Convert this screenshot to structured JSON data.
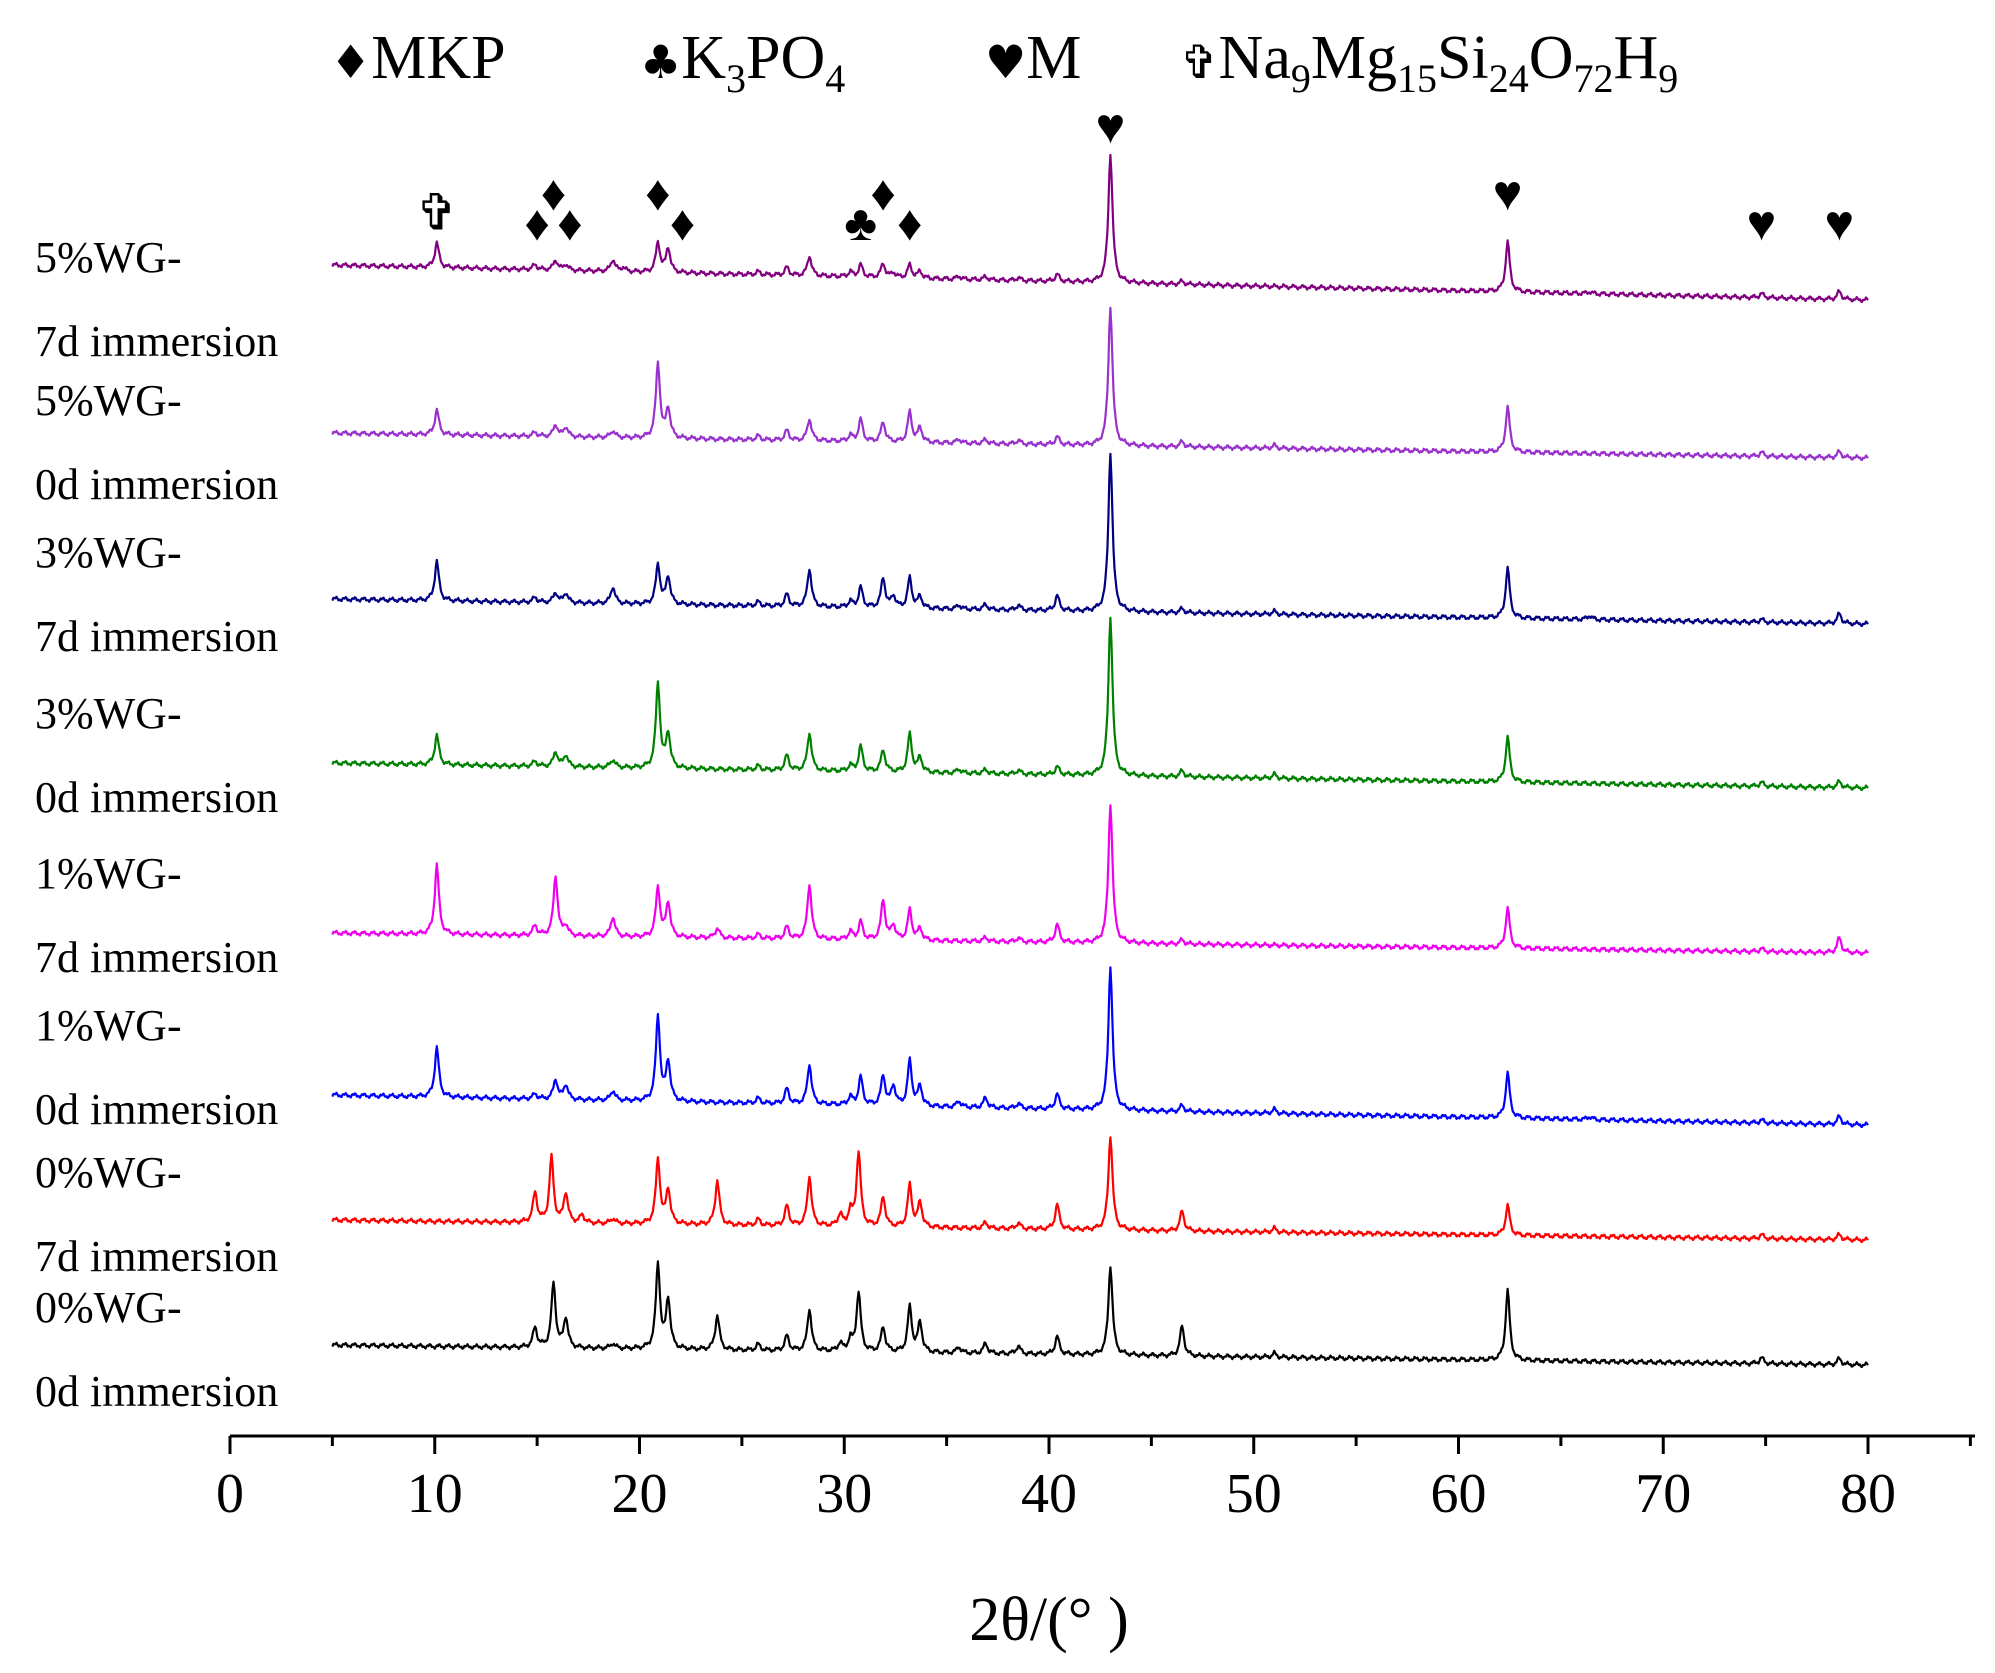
{
  "chart_data": {
    "type": "line",
    "title": "",
    "xlabel": "2θ/(° )",
    "ylabel": "",
    "xlim": [
      0,
      85
    ],
    "xticks": [
      0,
      10,
      20,
      30,
      40,
      50,
      60,
      70,
      80
    ],
    "grid": false,
    "legend": {
      "placement": "top",
      "entries": [
        {
          "symbol": "♦",
          "parts": [
            [
              "MKP",
              "n"
            ]
          ]
        },
        {
          "symbol": "♣",
          "parts": [
            [
              "K",
              "n"
            ],
            [
              "3",
              "s"
            ],
            [
              "PO",
              "n"
            ],
            [
              "4",
              "s"
            ]
          ]
        },
        {
          "symbol": "♥",
          "parts": [
            [
              "M",
              "n"
            ]
          ]
        },
        {
          "symbol": "✞",
          "parts": [
            [
              "Na",
              "n"
            ],
            [
              "9",
              "s"
            ],
            [
              "Mg",
              "n"
            ],
            [
              "15",
              "s"
            ],
            [
              "Si",
              "n"
            ],
            [
              "24",
              "s"
            ],
            [
              "O",
              "n"
            ],
            [
              "72",
              "s"
            ],
            [
              "H",
              "n"
            ],
            [
              "9",
              "s"
            ]
          ]
        }
      ]
    },
    "phase_markers": [
      {
        "symbol": "✞",
        "x": 10.1,
        "level": 1
      },
      {
        "symbol": "♦",
        "x": 15.0,
        "level": 1
      },
      {
        "symbol": "♦",
        "x": 15.8,
        "level": 2
      },
      {
        "symbol": "♦",
        "x": 16.6,
        "level": 1
      },
      {
        "symbol": "♦",
        "x": 20.9,
        "level": 2
      },
      {
        "symbol": "♦",
        "x": 22.1,
        "level": 1
      },
      {
        "symbol": "♣",
        "x": 30.8,
        "level": 1
      },
      {
        "symbol": "♦",
        "x": 31.9,
        "level": 2
      },
      {
        "symbol": "♦",
        "x": 33.2,
        "level": 1
      },
      {
        "symbol": "♥",
        "x": 43.0,
        "level": 3
      },
      {
        "symbol": "♥",
        "x": 62.4,
        "level": 2
      },
      {
        "symbol": "♥",
        "x": 74.8,
        "level": 1
      },
      {
        "symbol": "♥",
        "x": 78.6,
        "level": 1
      }
    ],
    "series": [
      {
        "name": "5%WG- 7d immersion",
        "label_lines": [
          "5%WG-",
          "7d immersion"
        ],
        "color": "#800080",
        "baseline_start": 0.35,
        "baseline_end": 0.0,
        "peaks": [
          [
            10.1,
            0.25
          ],
          [
            14.9,
            0.05
          ],
          [
            15.9,
            0.1
          ],
          [
            16.4,
            0.06
          ],
          [
            18.7,
            0.12
          ],
          [
            19.2,
            0.04
          ],
          [
            20.9,
            0.3
          ],
          [
            21.4,
            0.25
          ],
          [
            25.8,
            0.03
          ],
          [
            27.2,
            0.08
          ],
          [
            28.3,
            0.2
          ],
          [
            30.3,
            0.05
          ],
          [
            30.8,
            0.12
          ],
          [
            31.9,
            0.14
          ],
          [
            32.4,
            0.05
          ],
          [
            33.2,
            0.13
          ],
          [
            33.7,
            0.07
          ],
          [
            35.6,
            0.03
          ],
          [
            36.9,
            0.03
          ],
          [
            38.5,
            0.03
          ],
          [
            40.4,
            0.07
          ],
          [
            43.0,
            1.3
          ],
          [
            46.5,
            0.03
          ],
          [
            62.4,
            0.5
          ],
          [
            66.4,
            0.02
          ],
          [
            74.8,
            0.04
          ],
          [
            78.6,
            0.08
          ]
        ]
      },
      {
        "name": "5%WG- 0d immersion",
        "label_lines": [
          "5%WG-",
          "0d immersion"
        ],
        "color": "#9932CC",
        "baseline_start": 0.25,
        "baseline_end": 0.0,
        "peaks": [
          [
            10.1,
            0.25
          ],
          [
            14.9,
            0.04
          ],
          [
            15.9,
            0.12
          ],
          [
            16.4,
            0.1
          ],
          [
            18.7,
            0.07
          ],
          [
            20.9,
            0.75
          ],
          [
            21.4,
            0.3
          ],
          [
            25.8,
            0.04
          ],
          [
            27.2,
            0.1
          ],
          [
            28.3,
            0.22
          ],
          [
            30.3,
            0.06
          ],
          [
            30.8,
            0.22
          ],
          [
            31.9,
            0.2
          ],
          [
            33.2,
            0.3
          ],
          [
            33.7,
            0.15
          ],
          [
            35.6,
            0.04
          ],
          [
            36.9,
            0.04
          ],
          [
            38.5,
            0.04
          ],
          [
            40.4,
            0.08
          ],
          [
            43.0,
            1.4
          ],
          [
            46.5,
            0.05
          ],
          [
            51.0,
            0.03
          ],
          [
            62.4,
            0.45
          ],
          [
            74.8,
            0.04
          ],
          [
            78.6,
            0.06
          ]
        ]
      },
      {
        "name": "3%WG- 7d immersion",
        "label_lines": [
          "3%WG-",
          "7d immersion"
        ],
        "color": "#000080",
        "baseline_start": 0.25,
        "baseline_end": 0.0,
        "peaks": [
          [
            10.1,
            0.4
          ],
          [
            14.9,
            0.05
          ],
          [
            15.9,
            0.1
          ],
          [
            16.4,
            0.1
          ],
          [
            18.7,
            0.17
          ],
          [
            20.9,
            0.4
          ],
          [
            21.4,
            0.28
          ],
          [
            25.8,
            0.04
          ],
          [
            27.2,
            0.12
          ],
          [
            28.3,
            0.38
          ],
          [
            30.3,
            0.06
          ],
          [
            30.8,
            0.2
          ],
          [
            31.9,
            0.3
          ],
          [
            32.4,
            0.12
          ],
          [
            33.2,
            0.3
          ],
          [
            33.7,
            0.12
          ],
          [
            35.6,
            0.04
          ],
          [
            36.9,
            0.05
          ],
          [
            38.5,
            0.05
          ],
          [
            40.4,
            0.15
          ],
          [
            43.0,
            1.6
          ],
          [
            46.5,
            0.04
          ],
          [
            51.0,
            0.03
          ],
          [
            62.4,
            0.5
          ],
          [
            66.4,
            0.04
          ],
          [
            74.8,
            0.03
          ],
          [
            78.6,
            0.1
          ]
        ]
      },
      {
        "name": "3%WG- 0d immersion",
        "label_lines": [
          "3%WG-",
          "0d immersion"
        ],
        "color": "#008000",
        "baseline_start": 0.25,
        "baseline_end": 0.0,
        "peaks": [
          [
            10.1,
            0.3
          ],
          [
            14.9,
            0.05
          ],
          [
            15.9,
            0.15
          ],
          [
            16.4,
            0.12
          ],
          [
            18.7,
            0.08
          ],
          [
            20.9,
            0.85
          ],
          [
            21.4,
            0.35
          ],
          [
            25.8,
            0.04
          ],
          [
            27.2,
            0.15
          ],
          [
            28.3,
            0.38
          ],
          [
            30.3,
            0.06
          ],
          [
            30.8,
            0.25
          ],
          [
            31.9,
            0.22
          ],
          [
            33.2,
            0.38
          ],
          [
            33.7,
            0.15
          ],
          [
            35.6,
            0.04
          ],
          [
            36.9,
            0.04
          ],
          [
            38.5,
            0.04
          ],
          [
            40.4,
            0.08
          ],
          [
            43.0,
            1.6
          ],
          [
            46.5,
            0.06
          ],
          [
            51.0,
            0.04
          ],
          [
            62.4,
            0.45
          ],
          [
            74.8,
            0.04
          ],
          [
            78.6,
            0.06
          ]
        ]
      },
      {
        "name": "1%WG- 7d immersion",
        "label_lines": [
          "1%WG-",
          "7d immersion"
        ],
        "color": "#EE00EE",
        "baseline_start": 0.2,
        "baseline_end": 0.0,
        "peaks": [
          [
            10.1,
            0.7
          ],
          [
            14.9,
            0.1
          ],
          [
            15.9,
            0.6
          ],
          [
            16.4,
            0.1
          ],
          [
            18.7,
            0.2
          ],
          [
            20.9,
            0.5
          ],
          [
            21.4,
            0.35
          ],
          [
            23.8,
            0.1
          ],
          [
            25.8,
            0.04
          ],
          [
            27.2,
            0.12
          ],
          [
            28.3,
            0.55
          ],
          [
            30.3,
            0.08
          ],
          [
            30.8,
            0.18
          ],
          [
            31.9,
            0.4
          ],
          [
            32.4,
            0.15
          ],
          [
            33.2,
            0.3
          ],
          [
            33.7,
            0.12
          ],
          [
            36.9,
            0.04
          ],
          [
            38.5,
            0.04
          ],
          [
            40.4,
            0.18
          ],
          [
            43.0,
            1.4
          ],
          [
            46.5,
            0.04
          ],
          [
            62.4,
            0.4
          ],
          [
            74.8,
            0.03
          ],
          [
            78.6,
            0.15
          ]
        ]
      },
      {
        "name": "1%WG- 0d immersion",
        "label_lines": [
          "1%WG-",
          "0d immersion"
        ],
        "color": "#0000FF",
        "baseline_start": 0.3,
        "baseline_end": 0.0,
        "peaks": [
          [
            10.1,
            0.5
          ],
          [
            14.9,
            0.05
          ],
          [
            15.9,
            0.2
          ],
          [
            16.4,
            0.15
          ],
          [
            18.7,
            0.1
          ],
          [
            20.9,
            0.85
          ],
          [
            21.4,
            0.4
          ],
          [
            25.8,
            0.05
          ],
          [
            27.2,
            0.15
          ],
          [
            28.3,
            0.4
          ],
          [
            30.3,
            0.08
          ],
          [
            30.8,
            0.28
          ],
          [
            31.9,
            0.3
          ],
          [
            32.4,
            0.2
          ],
          [
            33.2,
            0.45
          ],
          [
            33.7,
            0.2
          ],
          [
            35.6,
            0.06
          ],
          [
            36.9,
            0.1
          ],
          [
            38.5,
            0.05
          ],
          [
            40.4,
            0.15
          ],
          [
            43.0,
            1.45
          ],
          [
            46.5,
            0.06
          ],
          [
            51.0,
            0.04
          ],
          [
            62.4,
            0.45
          ],
          [
            66.4,
            0.03
          ],
          [
            74.8,
            0.03
          ],
          [
            78.6,
            0.08
          ]
        ]
      },
      {
        "name": "0%WG- 7d immersion",
        "label_lines": [
          "0%WG-",
          "7d immersion"
        ],
        "color": "#FF0000",
        "baseline_start": 0.2,
        "baseline_end": 0.0,
        "peaks": [
          [
            14.9,
            0.3
          ],
          [
            15.7,
            0.65
          ],
          [
            16.4,
            0.3
          ],
          [
            17.2,
            0.08
          ],
          [
            18.7,
            0.05
          ],
          [
            20.9,
            0.65
          ],
          [
            21.4,
            0.35
          ],
          [
            23.8,
            0.45
          ],
          [
            25.8,
            0.06
          ],
          [
            27.2,
            0.2
          ],
          [
            28.3,
            0.5
          ],
          [
            29.8,
            0.12
          ],
          [
            30.3,
            0.15
          ],
          [
            30.7,
            0.75
          ],
          [
            31.9,
            0.3
          ],
          [
            33.2,
            0.42
          ],
          [
            33.7,
            0.25
          ],
          [
            36.9,
            0.06
          ],
          [
            38.5,
            0.06
          ],
          [
            40.4,
            0.25
          ],
          [
            43.0,
            0.95
          ],
          [
            46.5,
            0.2
          ],
          [
            51.0,
            0.04
          ],
          [
            62.4,
            0.3
          ],
          [
            74.8,
            0.04
          ],
          [
            78.6,
            0.05
          ]
        ]
      },
      {
        "name": "0%WG- 0d immersion",
        "label_lines": [
          "0%WG-",
          "0d immersion"
        ],
        "color": "#000000",
        "baseline_start": 0.2,
        "baseline_end": 0.0,
        "peaks": [
          [
            14.9,
            0.2
          ],
          [
            15.8,
            0.65
          ],
          [
            16.4,
            0.3
          ],
          [
            18.7,
            0.05
          ],
          [
            20.9,
            0.85
          ],
          [
            21.4,
            0.5
          ],
          [
            23.8,
            0.35
          ],
          [
            25.8,
            0.06
          ],
          [
            27.2,
            0.15
          ],
          [
            28.3,
            0.42
          ],
          [
            29.8,
            0.08
          ],
          [
            30.3,
            0.12
          ],
          [
            30.7,
            0.6
          ],
          [
            31.9,
            0.25
          ],
          [
            33.2,
            0.45
          ],
          [
            33.7,
            0.3
          ],
          [
            35.6,
            0.06
          ],
          [
            36.9,
            0.1
          ],
          [
            38.5,
            0.08
          ],
          [
            40.4,
            0.18
          ],
          [
            43.0,
            0.9
          ],
          [
            46.5,
            0.3
          ],
          [
            51.0,
            0.04
          ],
          [
            62.4,
            0.7
          ],
          [
            74.8,
            0.06
          ],
          [
            78.6,
            0.06
          ]
        ]
      }
    ]
  }
}
